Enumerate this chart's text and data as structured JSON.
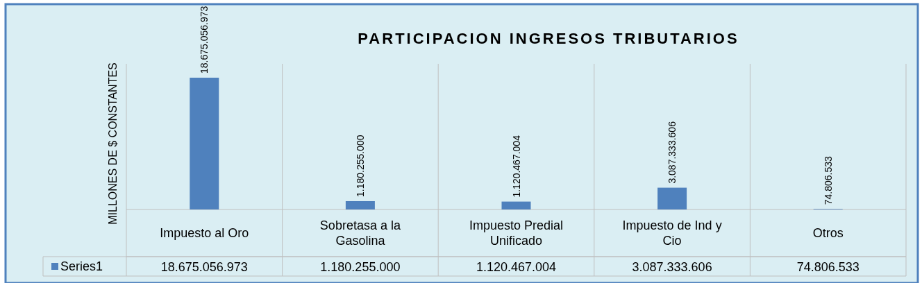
{
  "chart_data": {
    "type": "bar",
    "title": "PARTICIPACION INGRESOS TRIBUTARIOS",
    "ylabel": "MILLONES DE $ CONSTANTES",
    "categories": [
      "Impuesto al Oro",
      "Sobretasa a la Gasolina",
      "Impuesto Predial Unificado",
      "Impuesto de Ind y Cio",
      "Otros"
    ],
    "series": [
      {
        "name": "Series1",
        "color": "#4f81bd",
        "values": [
          18675056973,
          1180255000,
          1120467004,
          3087333606,
          74806533
        ],
        "value_labels": [
          "18.675.056.973",
          "1.180.255.000",
          "1.120.467.004",
          "3.087.333.606",
          "74.806.533"
        ]
      }
    ],
    "legend": "bottom",
    "grid": "x"
  }
}
